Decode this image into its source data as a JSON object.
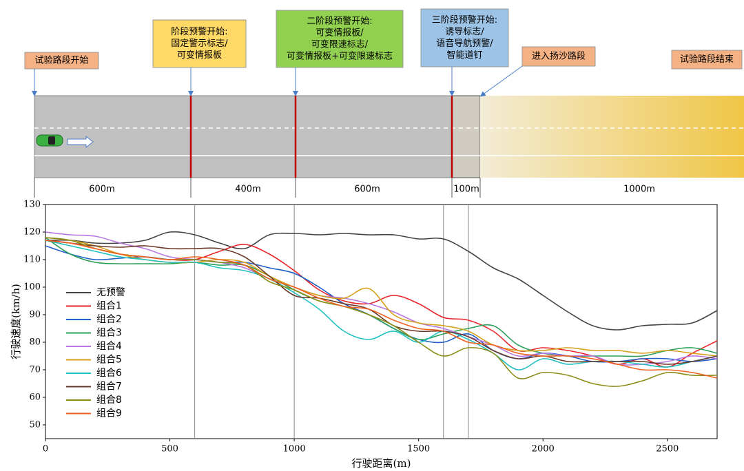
{
  "road_diagram": {
    "callouts": [
      {
        "lines": [
          "试验路段开始"
        ],
        "color": "#f4b183"
      },
      {
        "lines": [
          "阶段预警开始:",
          "固定警示标志/",
          "可变情报板"
        ],
        "color": "#ffd966"
      },
      {
        "lines": [
          "二阶段预警开始:",
          "可变情报板/",
          "可变限速标志/",
          "可变情报板+可变限速标志"
        ],
        "color": "#92d050"
      },
      {
        "lines": [
          "三阶段预警开始:",
          "诱导标志/",
          "语音导航预警/",
          "智能道钉"
        ],
        "color": "#9dc3e6"
      },
      {
        "lines": [
          "进入扬沙路段"
        ],
        "color": "#f4b183"
      },
      {
        "lines": [
          "试验路段结束"
        ],
        "color": "#f4b183"
      }
    ],
    "segments": [
      "600m",
      "400m",
      "600m",
      "100m",
      "1000m"
    ]
  },
  "chart_data": {
    "type": "line",
    "x_label": "行驶距离(m)",
    "y_label": "行驶速度(km/h)",
    "x": [
      0,
      100,
      200,
      300,
      400,
      500,
      600,
      700,
      800,
      900,
      1000,
      1100,
      1200,
      1300,
      1400,
      1500,
      1600,
      1700,
      1800,
      1900,
      2000,
      2100,
      2200,
      2300,
      2400,
      2500,
      2600,
      2700
    ],
    "xlim": [
      0,
      2700
    ],
    "xticks": [
      0,
      500,
      1000,
      1500,
      2000,
      2500
    ],
    "ylim": [
      45,
      130
    ],
    "yticks": [
      50,
      60,
      70,
      80,
      90,
      100,
      110,
      120,
      130
    ],
    "vlines": [
      600,
      1000,
      1600,
      1700
    ],
    "series": [
      {
        "name": "无预警",
        "color": "#444444",
        "values": [
          117,
          117,
          116,
          116,
          117,
          120,
          119,
          116,
          114,
          119,
          119.5,
          119,
          119.5,
          119,
          119,
          117.5,
          117.5,
          113,
          107,
          103,
          97,
          91,
          86,
          84.5,
          86,
          86.5,
          87,
          91.5
        ]
      },
      {
        "name": "组合1",
        "color": "#e8242a",
        "values": [
          117,
          116,
          114,
          112,
          111,
          110,
          110,
          113,
          115.5,
          112,
          106,
          99,
          95,
          94,
          97,
          94,
          89,
          88,
          84,
          77,
          78,
          77,
          75,
          72,
          74,
          71,
          76,
          80.5
        ]
      },
      {
        "name": "组合2",
        "color": "#1f5fc8",
        "values": [
          115,
          112,
          110,
          110.5,
          111,
          110,
          110,
          109,
          109,
          107,
          105,
          100,
          94,
          90,
          85,
          81,
          80,
          83,
          77,
          74,
          76,
          75,
          73,
          73,
          74,
          74,
          73,
          74
        ]
      },
      {
        "name": "组合3",
        "color": "#2ca05a",
        "values": [
          118,
          112,
          109,
          108.5,
          108.5,
          108.5,
          109,
          108,
          108,
          104,
          99,
          95,
          93,
          90,
          85,
          81,
          83,
          85,
          86,
          79,
          76,
          75,
          75,
          75,
          75,
          77,
          78,
          76
        ]
      },
      {
        "name": "组合4",
        "color": "#b777e0",
        "values": [
          120,
          119,
          118.5,
          116,
          114,
          111,
          110,
          109,
          107,
          103,
          100,
          97,
          96,
          94,
          91,
          87,
          85,
          82,
          79,
          75,
          76,
          75,
          75,
          72,
          72,
          73,
          75,
          74
        ]
      },
      {
        "name": "组合5",
        "color": "#d4a017",
        "values": [
          118,
          117,
          115,
          112,
          110,
          109,
          109,
          110,
          109,
          104,
          100,
          97,
          96,
          99.5,
          90,
          87,
          86,
          84,
          79,
          77,
          77,
          78,
          77,
          77,
          76,
          77,
          76,
          75
        ]
      },
      {
        "name": "组合6",
        "color": "#20c0c0",
        "values": [
          117,
          115,
          113,
          111,
          110,
          109,
          109,
          107,
          106,
          103,
          98,
          92,
          84,
          81,
          84,
          80,
          84,
          81,
          76,
          70,
          74,
          72,
          73,
          73,
          72,
          71,
          73,
          75
        ]
      },
      {
        "name": "组合7",
        "color": "#6b3a2a",
        "values": [
          117,
          116,
          115,
          114.5,
          115,
          114,
          114,
          114,
          111,
          104,
          97,
          96,
          94,
          92,
          86,
          84,
          84,
          82,
          77,
          74,
          75,
          73,
          73,
          73,
          73,
          72,
          73,
          75
        ]
      },
      {
        "name": "组合8",
        "color": "#8c8c18",
        "values": [
          118,
          117,
          114,
          112,
          111,
          110,
          110,
          109,
          108,
          102,
          99,
          95,
          93,
          90,
          86,
          80,
          75,
          78,
          76,
          67,
          69,
          68,
          65,
          64,
          66,
          69,
          68,
          68
        ]
      },
      {
        "name": "组合9",
        "color": "#f06020",
        "values": [
          117,
          116,
          114,
          112,
          111,
          110,
          111,
          110,
          108,
          103,
          100,
          96,
          93,
          92,
          88,
          85,
          84,
          80,
          79,
          76,
          75,
          75,
          74,
          72,
          70,
          70,
          69,
          67
        ]
      }
    ]
  }
}
